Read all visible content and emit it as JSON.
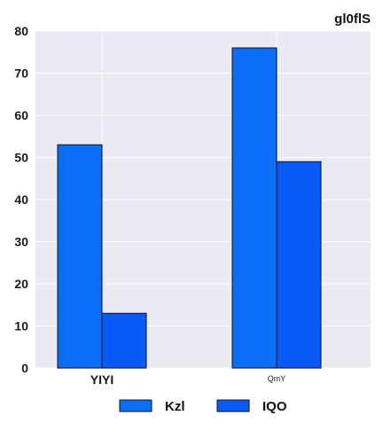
{
  "chart_data": {
    "type": "bar",
    "title": "gl0flS",
    "categories": [
      "YIYI",
      "QmY"
    ],
    "category_label_styles": [
      "bold",
      "small"
    ],
    "series": [
      {
        "name": "Kzl",
        "values": [
          53,
          76
        ],
        "color": "#0a6ef6"
      },
      {
        "name": "IQO",
        "values": [
          13,
          49
        ],
        "color": "#0a5afa"
      }
    ],
    "ylim": [
      0,
      80
    ],
    "yticks": [
      0,
      10,
      20,
      30,
      40,
      50,
      60,
      70,
      80
    ],
    "grid": true,
    "legend_position": "bottom-center",
    "background_color": "#eaeaf2"
  }
}
